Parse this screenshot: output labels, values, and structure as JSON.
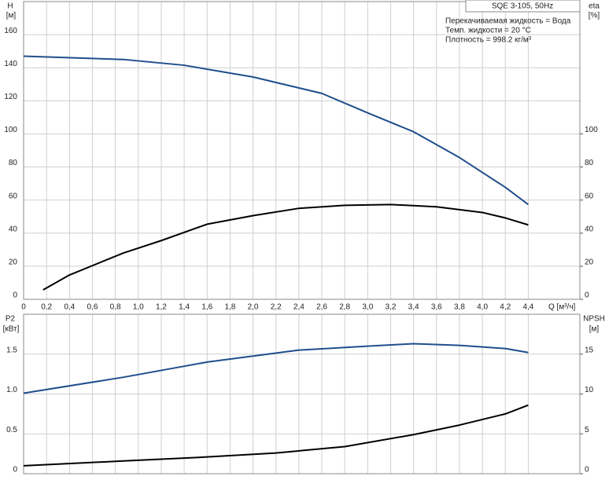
{
  "chart_data": [
    {
      "type": "line",
      "title": "SQE 3-105, 50Hz",
      "ylabel": [
        "H",
        "[м]"
      ],
      "y2label": [
        "eta",
        "[%]"
      ],
      "xlabel": "Q [м³/ч]",
      "annotations": [
        "Перекачиваемая жидкость = Вода",
        "Темп. жидкости = 20 °C",
        "Плотность = 998.2 кг/м³"
      ],
      "xlim": [
        0,
        4.85
      ],
      "xticks": [
        0,
        {
          "value": 0.2,
          "label": "0,2"
        },
        {
          "value": 0.4,
          "label": "0,4"
        },
        {
          "value": 0.6,
          "label": "0,6"
        },
        {
          "value": 0.8,
          "label": "0,8"
        },
        {
          "value": 1.0,
          "label": "1,0"
        },
        {
          "value": 1.2,
          "label": "1,2"
        },
        {
          "value": 1.4,
          "label": "1,4"
        },
        {
          "value": 1.6,
          "label": "1,6"
        },
        {
          "value": 1.8,
          "label": "1,8"
        },
        {
          "value": 2.0,
          "label": "2,0"
        },
        {
          "value": 2.2,
          "label": "2,2"
        },
        {
          "value": 2.4,
          "label": "2,4"
        },
        {
          "value": 2.6,
          "label": "2,6"
        },
        {
          "value": 2.8,
          "label": "2,8"
        },
        {
          "value": 3.0,
          "label": "3,0"
        },
        {
          "value": 3.2,
          "label": "3,2"
        },
        {
          "value": 3.4,
          "label": "3,4"
        },
        {
          "value": 3.6,
          "label": "3,6"
        },
        {
          "value": 3.8,
          "label": "3,8"
        },
        {
          "value": 4.0,
          "label": "4,0"
        },
        {
          "value": 4.2,
          "label": "4,2"
        },
        {
          "value": 4.4,
          "label": "4,4"
        }
      ],
      "ylim": [
        0,
        180
      ],
      "yticks": [
        0,
        20,
        40,
        60,
        80,
        100,
        120,
        140,
        160
      ],
      "y2lim": [
        0,
        180
      ],
      "y2ticks": [
        0,
        20,
        40,
        60,
        80,
        100
      ],
      "grid": true,
      "series": [
        {
          "color": "#1f4e8c",
          "x": [
            0,
            0.87,
            1.4,
            2.0,
            2.6,
            3.0,
            3.4,
            3.8,
            4.2,
            4.4
          ],
          "values": [
            147,
            145,
            141.5,
            134.4,
            124.5,
            112.7,
            101.3,
            85.7,
            67.7,
            57.3
          ]
        },
        {
          "color": "#000000",
          "axis": "y2",
          "x": [
            0.17,
            0.4,
            0.87,
            1.2,
            1.6,
            2.0,
            2.4,
            2.8,
            3.2,
            3.6,
            4.0,
            4.2,
            4.4
          ],
          "values": [
            5.7,
            14.7,
            28,
            35.5,
            45.4,
            50.6,
            55,
            56.8,
            57.3,
            55.9,
            52.5,
            49.2,
            45
          ]
        }
      ]
    },
    {
      "type": "line",
      "ylabel": [
        "P2",
        "[кВт]"
      ],
      "y2label": [
        "NPSH",
        "[м]"
      ],
      "xlim": [
        0,
        4.85
      ],
      "xticks": [
        0,
        0.2,
        0.4,
        0.6,
        0.8,
        1,
        1.2,
        1.4,
        1.6,
        1.8,
        2,
        2.2,
        2.4,
        2.6,
        2.8,
        3,
        3.2,
        3.4,
        3.6,
        3.8,
        4,
        4.2,
        4.4
      ],
      "ylim": [
        0,
        2.0
      ],
      "yticks": [
        0,
        0.5,
        {
          "value": 1.0,
          "label": "1.0"
        },
        1.5
      ],
      "y2lim": [
        0,
        20
      ],
      "y2ticks": [
        0,
        5,
        10,
        15
      ],
      "grid": true,
      "series": [
        {
          "color": "#1f4e8c",
          "x": [
            0,
            0.87,
            1.6,
            2.4,
            3.0,
            3.4,
            3.8,
            4.2,
            4.4
          ],
          "values": [
            1.01,
            1.21,
            1.4,
            1.55,
            1.6,
            1.63,
            1.61,
            1.57,
            1.52
          ]
        },
        {
          "color": "#000000",
          "axis": "y2",
          "x": [
            0,
            0.87,
            1.6,
            2.2,
            2.8,
            3.4,
            3.8,
            4.2,
            4.4
          ],
          "values": [
            1.0,
            1.6,
            2.1,
            2.6,
            3.4,
            4.9,
            6.1,
            7.5,
            8.6
          ]
        }
      ]
    }
  ]
}
